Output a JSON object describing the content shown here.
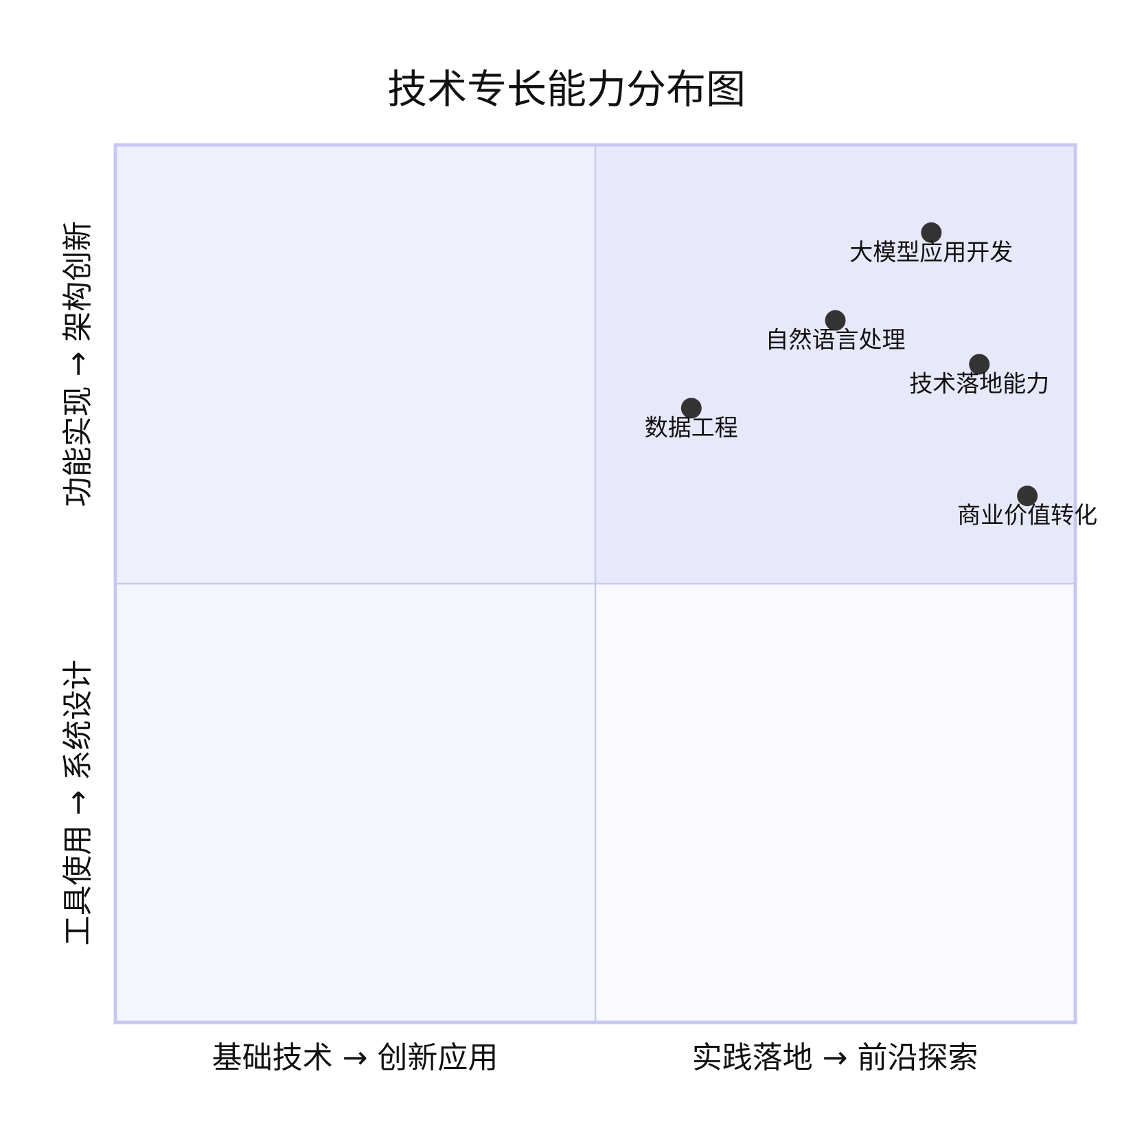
{
  "chart_data": {
    "type": "quadrant",
    "title": "技术专长能力分布图",
    "x_axis": {
      "low_label": "基础技术 → 创新应用",
      "high_label": "实践落地 → 前沿探索"
    },
    "y_axis": {
      "low_label": "工具使用 → 系统设计",
      "high_label": "功能实现 → 架构创新"
    },
    "xlim": [
      0,
      1
    ],
    "ylim": [
      0,
      1
    ],
    "points": [
      {
        "label": "大模型应用开发",
        "x": 0.85,
        "y": 0.9
      },
      {
        "label": "自然语言处理",
        "x": 0.75,
        "y": 0.8
      },
      {
        "label": "技术落地能力",
        "x": 0.9,
        "y": 0.75
      },
      {
        "label": "数据工程",
        "x": 0.6,
        "y": 0.7
      },
      {
        "label": "商业价值转化",
        "x": 0.95,
        "y": 0.6
      }
    ],
    "colors": {
      "quadrant_top_right": "#e8e8fb",
      "quadrant_top_left": "#f0f0fd",
      "quadrant_bottom_left": "#f5f5fe",
      "quadrant_bottom_right": "#f9f9fe",
      "border": "#c8c8ef",
      "divider": "#c8c8ef",
      "point": "#333333",
      "text": "#111111"
    }
  }
}
